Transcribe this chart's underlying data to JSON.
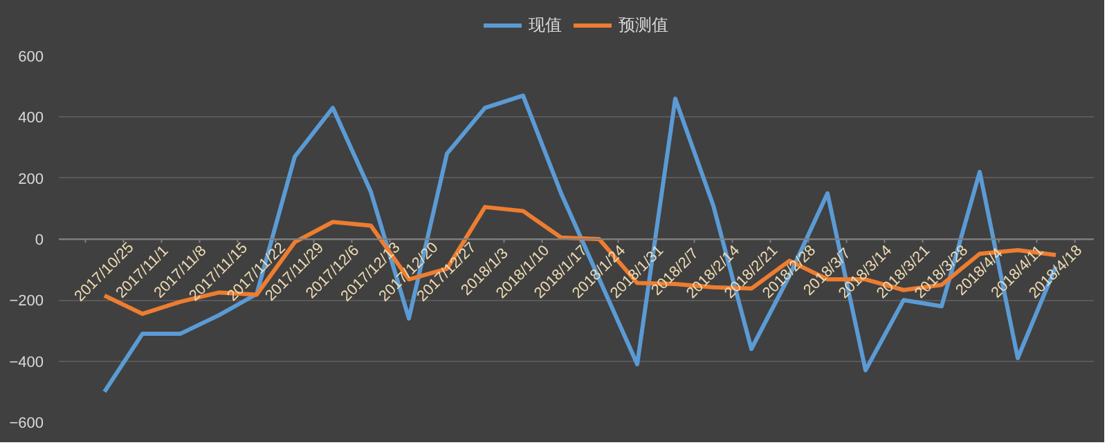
{
  "chart_data": {
    "type": "line",
    "categories": [
      "2017/10/25",
      "2017/11/1",
      "2017/11/8",
      "2017/11/15",
      "2017/11/22",
      "2017/11/29",
      "2017/12/6",
      "2017/12/13",
      "2017/12/20",
      "2017/12/27",
      "2018/1/3",
      "2018/1/10",
      "2018/1/17",
      "2018/1/24",
      "2018/1/31",
      "2018/2/7",
      "2018/2/14",
      "2018/2/21",
      "2018/2/28",
      "2018/3/7",
      "2018/3/14",
      "2018/3/21",
      "2018/3/28",
      "2018/4/4",
      "2018/4/11",
      "2018/4/18"
    ],
    "series": [
      {
        "name": "现值",
        "color": "#5b9bd5",
        "values": [
          -500,
          -310,
          -310,
          -250,
          -180,
          270,
          430,
          155,
          -260,
          280,
          430,
          470,
          150,
          -130,
          -410,
          460,
          110,
          -360,
          -120,
          150,
          -430,
          -200,
          -220,
          220,
          -390,
          -90
        ]
      },
      {
        "name": "预测值",
        "color": "#ed7d31",
        "values": [
          -185,
          -245,
          -205,
          -175,
          -182,
          -10,
          56,
          44,
          -132,
          -97,
          105,
          92,
          5,
          0,
          -144,
          -147,
          -158,
          -162,
          -71,
          -132,
          -132,
          -167,
          -150,
          -48,
          -36,
          -52
        ]
      }
    ],
    "ylim": [
      -600,
      600
    ],
    "yticks": [
      -600,
      -400,
      -200,
      0,
      200,
      400,
      600
    ],
    "grid": "y",
    "legend": "top",
    "marker": "none",
    "line_style": "solid"
  }
}
